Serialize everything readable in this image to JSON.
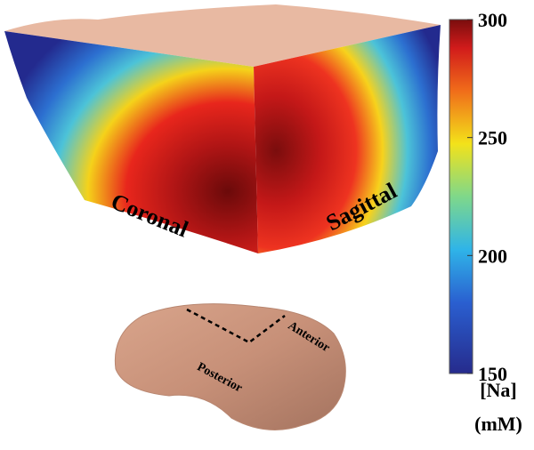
{
  "views": {
    "left_face": "Coronal",
    "right_face": "Sagittal"
  },
  "brain": {
    "anterior": "Anterior",
    "posterior": "Posterior"
  },
  "colorbar": {
    "lim": [
      150,
      300
    ],
    "ticks": [
      150,
      200,
      250,
      300
    ],
    "label": [
      "[Na]",
      "(mM)"
    ]
  }
}
